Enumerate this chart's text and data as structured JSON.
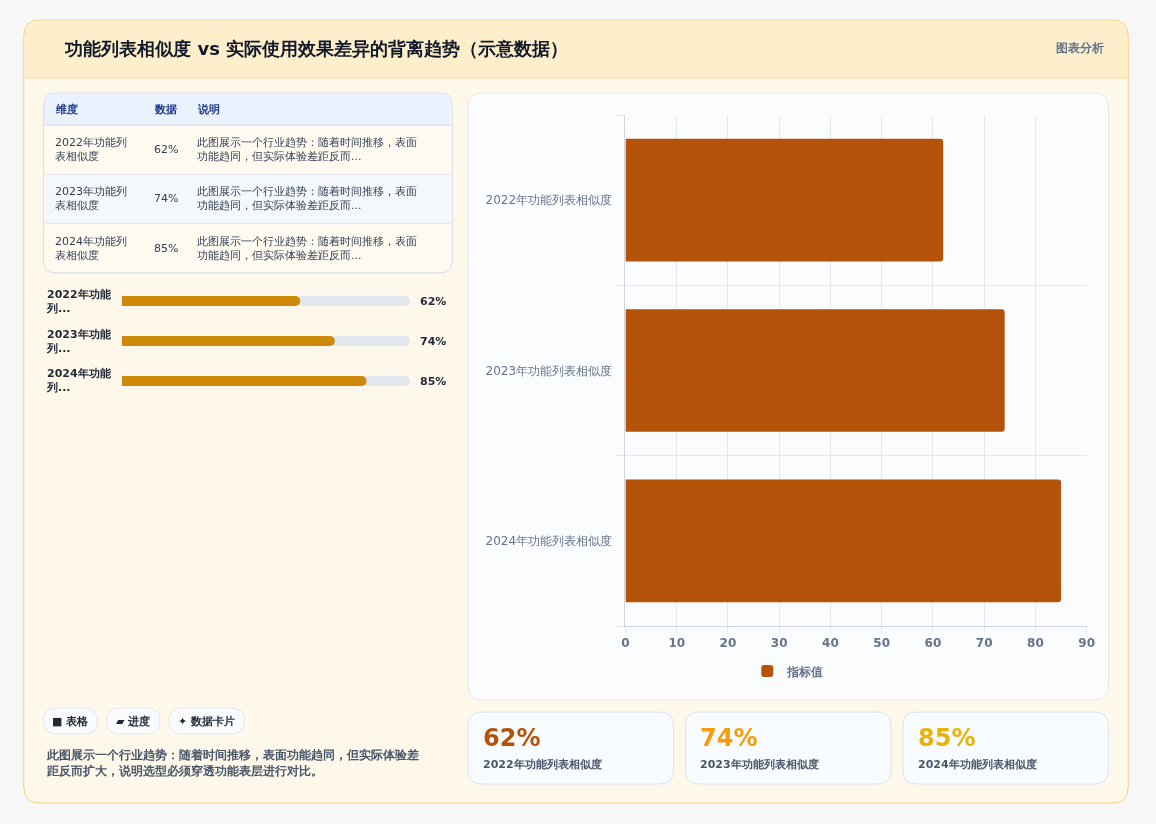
{
  "chart_data": [
    {
      "type": "other",
      "title": "功能列表相似度 vs 实际使用效果差异的背离趋势（示意数据）",
      "annotations": [
        "图表分析"
      ]
    },
    {
      "type": "other",
      "annotations": [
        "维度",
        "数据",
        "说明",
        "2022年功能列表相似度",
        "62%",
        "此图展示一个行业趋势：随着时间推移，表面功能趋同，但实际体验差距反而...",
        "2023年功能列表相似度",
        "74%",
        "此图展示一个行业趋势：随着时间推移，表面功能趋同，但实际体验差距反而...",
        "2024年功能列表相似度",
        "85%",
        "此图展示一个行业趋势：随着时间推移，表面功能趋同，但实际体验差距反而..."
      ]
    },
    {
      "type": "bar",
      "orientation": "horizontal",
      "categories": [
        "2022年功能列...",
        "2023年功能列...",
        "2024年功能列..."
      ],
      "values": [
        62,
        74,
        85
      ],
      "value_labels": [
        "62%",
        "74%",
        "85%"
      ],
      "color": "#d08a0b",
      "xlim": [
        0,
        100
      ],
      "tick_labels": "y"
    },
    {
      "type": "other",
      "annotations": [
        "■ 表格",
        "▰ 进度",
        "✦ 数据卡片",
        "此图展示一个行业趋势：随着时间推移，表面功能趋同，但实际体验差距反而扩大，说明选型必须穿透功能表层进行对比。"
      ]
    },
    {
      "type": "bar",
      "orientation": "horizontal",
      "categories": [
        "2022年功能列表相似度",
        "2023年功能列表相似度",
        "2024年功能列表相似度"
      ],
      "series": [
        {
          "name": "指标值",
          "color": "#b45309",
          "values": [
            62,
            74,
            85
          ]
        }
      ],
      "xlim": [
        0,
        90
      ],
      "xticks": [
        0,
        10,
        20,
        30,
        40,
        50,
        60,
        70,
        80,
        90
      ],
      "grid": true,
      "legend": "bottom"
    },
    {
      "type": "other",
      "annotations": [
        "62%",
        "2022年功能列表相似度",
        "74%",
        "2023年功能列表相似度",
        "85%",
        "2024年功能列表相似度"
      ],
      "colors": [
        "#b45309",
        "#f59e0b",
        "#eab308"
      ]
    }
  ]
}
